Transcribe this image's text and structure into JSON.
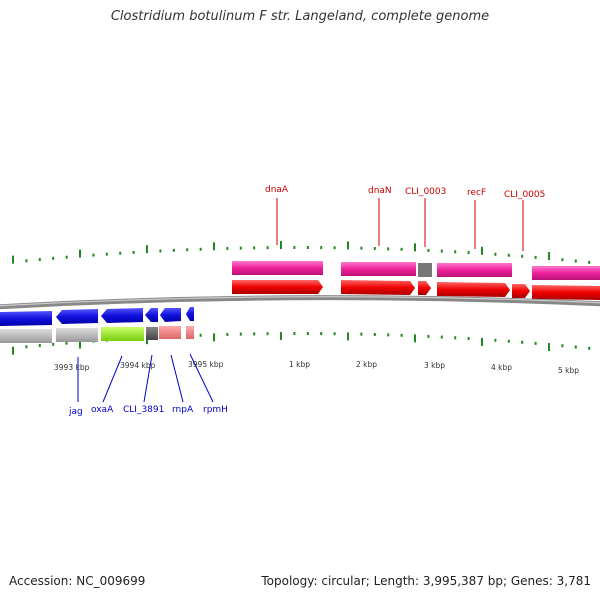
{
  "title": "Clostridium botulinum F str. Langeland, complete genome",
  "footer": {
    "accession": "Accession: NC_009699",
    "topology": "Topology: circular; Length: 3,995,387 bp; Genes: 3,781"
  },
  "scale_labels": [
    "3993 kbp",
    "3994 kbp",
    "3995 kbp",
    "1 kbp",
    "2 kbp",
    "3 kbp",
    "4 kbp",
    "5 kbp"
  ],
  "forward_gene_labels": [
    "dnaA",
    "dnaN",
    "CLI_0003",
    "recF",
    "CLI_0005"
  ],
  "reverse_gene_labels": [
    "jag",
    "oxaA",
    "CLI_3891",
    "rnpA",
    "rpmH"
  ],
  "colors": {
    "forward_cds": "#ee1111",
    "forward_gene": "#ee2299",
    "reverse_cds": "#1111dd",
    "reverse_gene_grey": "#bbbbbb",
    "reverse_gene_green": "#99ee22",
    "reverse_gene_dark": "#666666",
    "reverse_gene_pink": "#ee8888",
    "backbone": "#888888",
    "ticks": "#228822",
    "forward_label": "#cc0000",
    "reverse_label": "#0000cc"
  }
}
